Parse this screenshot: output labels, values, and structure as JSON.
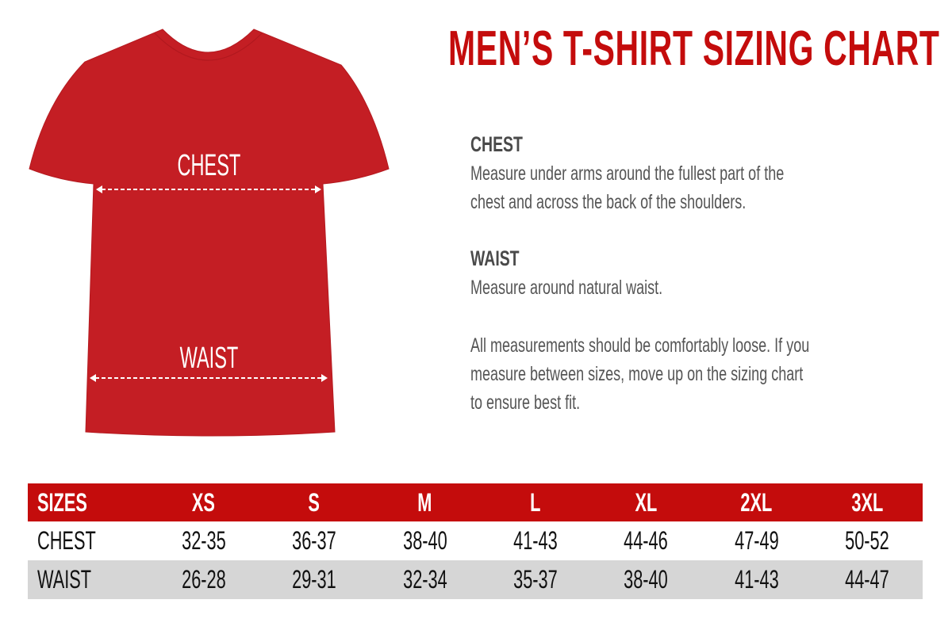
{
  "title": "MEN’S T-SHIRT SIZING CHART",
  "colors": {
    "accent": "#c40c0c",
    "shirt": "#c41e24",
    "row_alt": "#d6d6d6"
  },
  "shirt": {
    "chest_label": "CHEST",
    "waist_label": "WAIST"
  },
  "instructions": {
    "chest_heading": "CHEST",
    "chest_text": [
      "Measure under arms around the fullest part of the",
      "chest and across the back of the shoulders."
    ],
    "waist_heading": "WAIST",
    "waist_text": "Measure around natural waist.",
    "note": [
      "All measurements should be comfortably loose. If you",
      "measure between sizes, move up on the sizing chart",
      "to ensure best fit."
    ]
  },
  "table": {
    "header": [
      "SIZES",
      "XS",
      "S",
      "M",
      "L",
      "XL",
      "2XL",
      "3XL"
    ],
    "rows": [
      [
        "CHEST",
        "32-35",
        "36-37",
        "38-40",
        "41-43",
        "44-46",
        "47-49",
        "50-52"
      ],
      [
        "WAIST",
        "26-28",
        "29-31",
        "32-34",
        "35-37",
        "38-40",
        "41-43",
        "44-47"
      ]
    ]
  }
}
